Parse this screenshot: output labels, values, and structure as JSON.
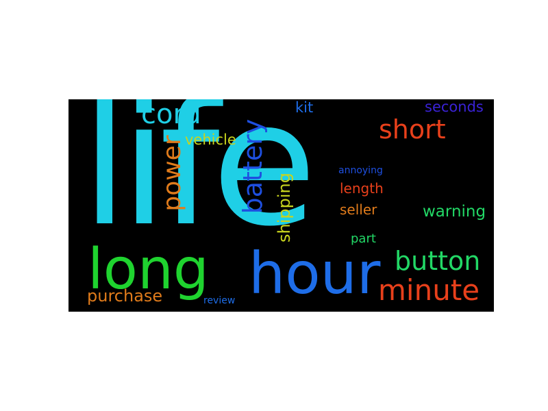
{
  "background_color": "#000000",
  "page_color": "#ffffff",
  "words": [
    {
      "text": "life",
      "color": "#1fcfe6"
    },
    {
      "text": "hour",
      "color": "#1e6de8"
    },
    {
      "text": "long",
      "color": "#1fd32f"
    },
    {
      "text": "minute",
      "color": "#e8401b"
    },
    {
      "text": "button",
      "color": "#22d866"
    },
    {
      "text": "short",
      "color": "#e8401b"
    },
    {
      "text": "cord",
      "color": "#1fcfe6"
    },
    {
      "text": "battery",
      "color": "#1e4fe0"
    },
    {
      "text": "power",
      "color": "#e07b1b"
    },
    {
      "text": "shipping",
      "color": "#c8d41e"
    },
    {
      "text": "purchase",
      "color": "#e07b1b"
    },
    {
      "text": "warning",
      "color": "#22d866"
    },
    {
      "text": "seconds",
      "color": "#3a22d6"
    },
    {
      "text": "vehicle",
      "color": "#c8d41e"
    },
    {
      "text": "kit",
      "color": "#1e6de8"
    },
    {
      "text": "length",
      "color": "#e8401b"
    },
    {
      "text": "seller",
      "color": "#e07b1b"
    },
    {
      "text": "part",
      "color": "#22d866"
    },
    {
      "text": "annoying",
      "color": "#1e4fe0"
    },
    {
      "text": "review",
      "color": "#1e6de8"
    }
  ]
}
